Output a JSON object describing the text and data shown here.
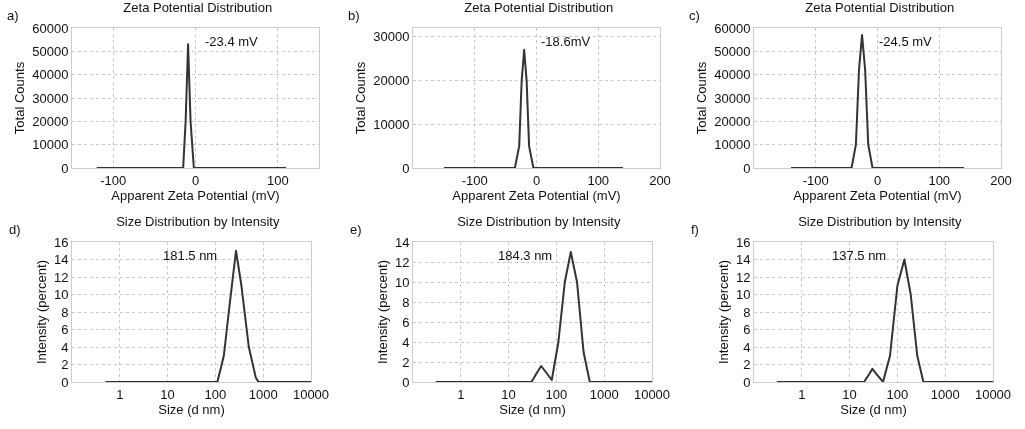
{
  "chart_data": [
    {
      "type": "line",
      "title": "Zeta Potential Distribution",
      "xlabel": "Apparent Zeta Potential (mV)",
      "ylabel": "Total Counts",
      "annotations": [
        "a)",
        "-23.4 mV"
      ],
      "x": [
        -120,
        -15,
        -12,
        -9,
        -6,
        -2,
        110
      ],
      "series": [
        {
          "color": "#333333",
          "values": [
            0,
            0,
            20000,
            53000,
            20000,
            0,
            0
          ]
        }
      ],
      "xlim": [
        -150,
        150
      ],
      "xticks": [
        -100,
        0,
        100
      ],
      "ylim": [
        0,
        60000
      ],
      "yticks": [
        0,
        10000,
        20000,
        30000,
        40000,
        50000,
        60000
      ],
      "grid": true,
      "legend": false
    },
    {
      "type": "line",
      "title": "Zeta Potential Distribution",
      "xlabel": "Apparent Zeta Potential (mV)",
      "ylabel": "Total Counts",
      "annotations": [
        "b)",
        "-18.6mV"
      ],
      "x": [
        -150,
        -35,
        -28,
        -24,
        -20,
        -16,
        -12,
        -5,
        140
      ],
      "series": [
        {
          "color": "#333333",
          "values": [
            0,
            0,
            5000,
            20000,
            27000,
            20000,
            5000,
            0,
            0
          ]
        }
      ],
      "xlim": [
        -200,
        200
      ],
      "xticks": [
        -100,
        0,
        100,
        200
      ],
      "ylim": [
        0,
        32000
      ],
      "yticks": [
        0,
        10000,
        20000,
        30000
      ],
      "grid": true,
      "legend": false
    },
    {
      "type": "line",
      "title": "Zeta Potential Distribution",
      "xlabel": "Apparent Zeta Potential (mV)",
      "ylabel": "Total Counts",
      "annotations": [
        "c)",
        "-24.5 mV"
      ],
      "x": [
        -140,
        -42,
        -35,
        -30,
        -25,
        -20,
        -15,
        -8,
        140
      ],
      "series": [
        {
          "color": "#333333",
          "values": [
            0,
            0,
            10000,
            42000,
            57000,
            42000,
            10000,
            0,
            0
          ]
        }
      ],
      "xlim": [
        -200,
        200
      ],
      "xticks": [
        -100,
        0,
        100,
        200
      ],
      "ylim": [
        0,
        60000
      ],
      "yticks": [
        0,
        10000,
        20000,
        30000,
        40000,
        50000,
        60000
      ],
      "grid": true,
      "legend": false
    },
    {
      "type": "line",
      "title": "Size Distribution by Intensity",
      "xlabel": "Size (d nm)",
      "ylabel": "Intensity (percent)",
      "annotations": [
        "d)",
        "181.5 nm"
      ],
      "x": [
        0.5,
        110,
        150,
        200,
        270,
        350,
        500,
        700,
        800,
        10000
      ],
      "series": [
        {
          "color": "#333333",
          "values": [
            0,
            0,
            3,
            9,
            15,
            11,
            4,
            0.5,
            0,
            0
          ]
        }
      ],
      "log": "x",
      "xlim": [
        0.1,
        10000
      ],
      "xticks": [
        1,
        10,
        100,
        1000,
        10000
      ],
      "ylim": [
        0,
        16
      ],
      "yticks": [
        0,
        2,
        4,
        6,
        8,
        10,
        12,
        14,
        16
      ],
      "grid": true,
      "legend": false
    },
    {
      "type": "line",
      "title": "Size Distribution by Intensity",
      "xlabel": "Size (d nm)",
      "ylabel": "Intensity (percent)",
      "annotations": [
        "e)",
        "184.3 nm"
      ],
      "x": [
        0.3,
        30,
        40,
        48,
        60,
        80,
        110,
        150,
        200,
        270,
        370,
        500,
        10000
      ],
      "series": [
        {
          "color": "#333333",
          "values": [
            0,
            0,
            1,
            1.6,
            1,
            0.2,
            4,
            10,
            13,
            10,
            3,
            0,
            0
          ]
        }
      ],
      "log": "x",
      "xlim": [
        0.1,
        10000
      ],
      "xticks": [
        1,
        10,
        100,
        1000,
        10000
      ],
      "ylim": [
        0,
        14
      ],
      "yticks": [
        0,
        2,
        4,
        6,
        8,
        10,
        12,
        14
      ],
      "grid": true,
      "legend": false
    },
    {
      "type": "line",
      "title": "Size Distribution by Intensity",
      "xlabel": "Size (d nm)",
      "ylabel": "Intensity (percent)",
      "annotations": [
        "f)",
        "137.5 nm"
      ],
      "x": [
        0.3,
        20,
        25,
        30,
        38,
        50,
        70,
        100,
        140,
        190,
        260,
        350,
        10000
      ],
      "series": [
        {
          "color": "#333333",
          "values": [
            0,
            0,
            0.8,
            1.5,
            0.8,
            0,
            3,
            11,
            14,
            10,
            3,
            0,
            0
          ]
        }
      ],
      "log": "x",
      "xlim": [
        0.1,
        10000
      ],
      "xticks": [
        1,
        10,
        100,
        1000,
        10000
      ],
      "ylim": [
        0,
        16
      ],
      "yticks": [
        0,
        2,
        4,
        6,
        8,
        10,
        12,
        14,
        16
      ],
      "grid": true,
      "legend": false
    }
  ]
}
